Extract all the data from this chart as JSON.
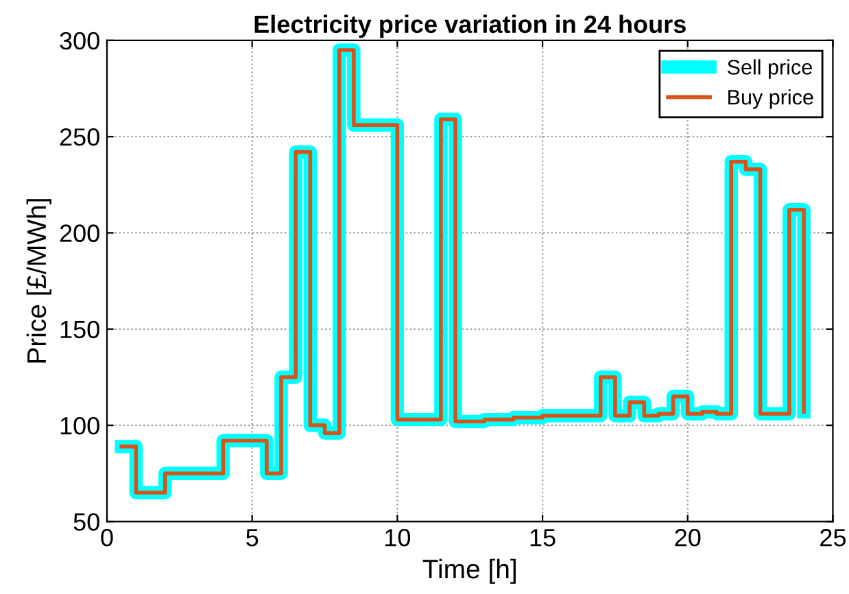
{
  "chart_data": {
    "type": "step",
    "title": "Electricity price variation in 24 hours",
    "xlabel": "Time [h]",
    "ylabel": "Price [£/MWh]",
    "x": [
      0.5,
      1,
      1.5,
      2,
      2.5,
      3,
      3.5,
      4,
      4.5,
      5,
      5.5,
      6,
      6.5,
      7,
      7.5,
      8,
      8.5,
      9,
      9.5,
      10,
      10.5,
      11,
      11.5,
      12,
      12.5,
      13,
      13.5,
      14,
      14.5,
      15,
      15.5,
      16,
      16.5,
      17,
      17.5,
      18,
      18.5,
      19,
      19.5,
      20,
      20.5,
      21,
      21.5,
      22,
      22.5,
      23,
      23.5,
      24
    ],
    "series": [
      {
        "name": "Sell price",
        "color": "#00ffff",
        "values": [
          89,
          65,
          65,
          75,
          75,
          75,
          75,
          92,
          92,
          92,
          75,
          125,
          242,
          100,
          96,
          295,
          256,
          256,
          256,
          103,
          103,
          103,
          259,
          102,
          102,
          103,
          103,
          104,
          104,
          105,
          105,
          105,
          105,
          125,
          105,
          112,
          105,
          106,
          115,
          106,
          107,
          106,
          237,
          233,
          106,
          106,
          212,
          107
        ]
      },
      {
        "name": "Buy price",
        "color": "#d95319",
        "values": [
          89,
          65,
          65,
          75,
          75,
          75,
          75,
          92,
          92,
          92,
          75,
          125,
          242,
          100,
          96,
          295,
          256,
          256,
          256,
          103,
          103,
          103,
          259,
          102,
          102,
          103,
          103,
          104,
          104,
          105,
          105,
          105,
          105,
          125,
          105,
          112,
          105,
          106,
          115,
          106,
          107,
          106,
          237,
          233,
          106,
          106,
          212,
          107
        ]
      }
    ],
    "xlim": [
      0,
      25
    ],
    "xticks": [
      0,
      5,
      10,
      15,
      20,
      25
    ],
    "ylim": [
      50,
      300
    ],
    "yticks": [
      50,
      100,
      150,
      200,
      250,
      300
    ],
    "grid": true,
    "legend": "top right"
  }
}
